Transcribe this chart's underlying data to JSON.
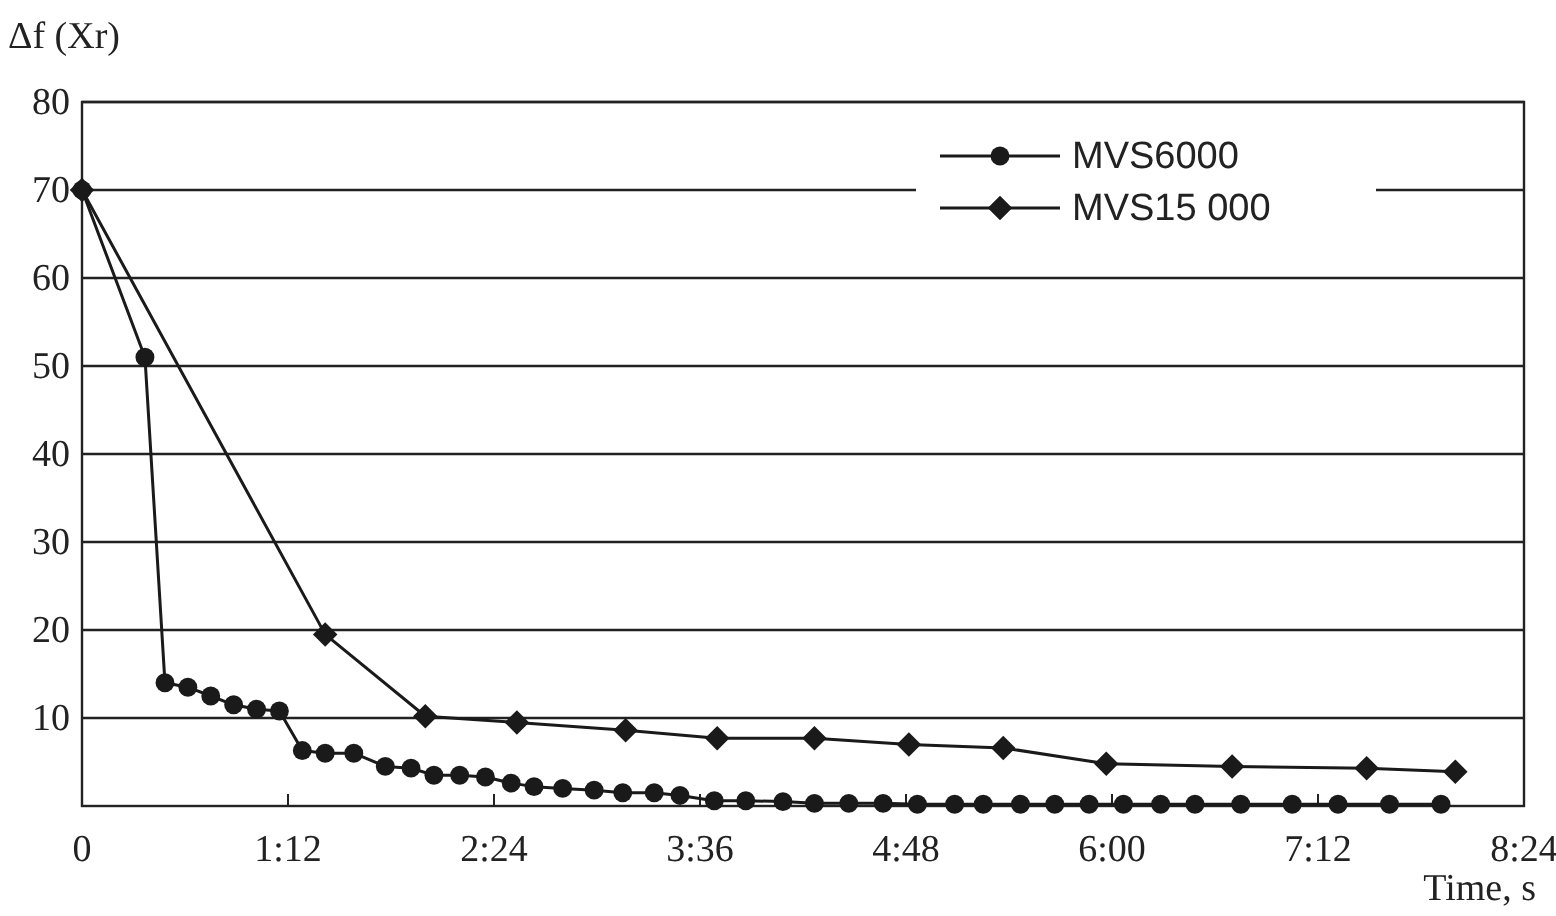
{
  "chart_data": {
    "type": "line",
    "ylabel": "Δf (Xr)",
    "xlabel": "Time, s",
    "xlim": [
      0,
      504
    ],
    "ylim": [
      0,
      80
    ],
    "xticks": [
      {
        "value": 0,
        "label": "0"
      },
      {
        "value": 72,
        "label": "1:12"
      },
      {
        "value": 144,
        "label": "2:24"
      },
      {
        "value": 216,
        "label": "3:36"
      },
      {
        "value": 288,
        "label": "4:48"
      },
      {
        "value": 360,
        "label": "6:00"
      },
      {
        "value": 432,
        "label": "7:12"
      },
      {
        "value": 504,
        "label": "8:24"
      }
    ],
    "yticks": [
      10,
      20,
      30,
      40,
      50,
      60,
      70,
      80
    ],
    "grid": "y",
    "legend": "top right",
    "series": [
      {
        "name": "MVS6000",
        "color": "#1a1a1a",
        "marker": "circle",
        "x": [
          0,
          22,
          29,
          37,
          45,
          53,
          61,
          69,
          77,
          85,
          95,
          106,
          115,
          123,
          132,
          141,
          150,
          158,
          168,
          179,
          189,
          200,
          209,
          221,
          232,
          245,
          256,
          268,
          280,
          292,
          305,
          315,
          328,
          340,
          352,
          364,
          377,
          389,
          405,
          423,
          439,
          457,
          475
        ],
        "values": [
          70,
          51,
          14,
          13.5,
          12.5,
          11.5,
          11,
          10.8,
          6.3,
          6,
          6,
          4.5,
          4.3,
          3.5,
          3.5,
          3.3,
          2.6,
          2.2,
          2,
          1.8,
          1.5,
          1.5,
          1.2,
          0.6,
          0.6,
          0.5,
          0.3,
          0.3,
          0.3,
          0.2,
          0.2,
          0.2,
          0.2,
          0.2,
          0.2,
          0.2,
          0.2,
          0.2,
          0.2,
          0.2,
          0.2,
          0.2,
          0.2
        ]
      },
      {
        "name": "MVS15 000",
        "color": "#1a1a1a",
        "marker": "diamond",
        "x": [
          0,
          85,
          120,
          152,
          190,
          222,
          256,
          289,
          322,
          358,
          402,
          449,
          480
        ],
        "values": [
          70,
          19.5,
          10.2,
          9.5,
          8.6,
          7.7,
          7.7,
          7,
          6.6,
          4.8,
          4.5,
          4.3,
          3.9
        ]
      }
    ]
  }
}
